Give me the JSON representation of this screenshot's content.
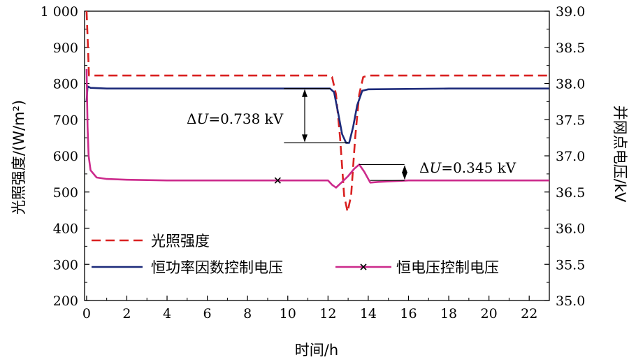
{
  "chart_data": {
    "type": "line",
    "xlabel": "时间/h",
    "ylabel_left": "光照强度/(W/m²)",
    "ylabel_right": "并网点电压/kV",
    "xlim": [
      -0.1,
      23
    ],
    "ylim_left": [
      200,
      1000
    ],
    "ylim_right": [
      35.0,
      39.0
    ],
    "x_ticks": [
      "0",
      "2",
      "4",
      "6",
      "8",
      "10",
      "12",
      "14",
      "16",
      "18",
      "20",
      "22"
    ],
    "y_left_ticks": [
      "200",
      "300",
      "400",
      "500",
      "600",
      "700",
      "800",
      "900",
      "1 000"
    ],
    "y_right_ticks": [
      "35.0",
      "35.5",
      "36.0",
      "36.5",
      "37.0",
      "37.5",
      "38.0",
      "38.5",
      "39.0"
    ],
    "grid": false,
    "legend_placement": "bottom-left",
    "series": [
      {
        "name": "光照强度",
        "axis": "left",
        "color": "#d92121",
        "style": "dashed",
        "points": [
          [
            0,
            1000
          ],
          [
            0.05,
            930
          ],
          [
            0.12,
            822
          ],
          [
            0.3,
            822
          ],
          [
            4,
            822
          ],
          [
            8,
            822
          ],
          [
            12,
            822
          ],
          [
            12.2,
            818
          ],
          [
            12.4,
            770
          ],
          [
            12.6,
            650
          ],
          [
            12.8,
            490
          ],
          [
            12.97,
            445
          ],
          [
            13.15,
            490
          ],
          [
            13.35,
            650
          ],
          [
            13.55,
            770
          ],
          [
            13.75,
            818
          ],
          [
            14.0,
            822
          ],
          [
            18,
            822
          ],
          [
            23,
            822
          ]
        ]
      },
      {
        "name": "恒功率因数控制电压",
        "axis": "right",
        "color": "#1c2a7a",
        "style": "solid",
        "points": [
          [
            0,
            37.75
          ],
          [
            0.05,
            37.96
          ],
          [
            0.2,
            37.94
          ],
          [
            1,
            37.93
          ],
          [
            4,
            37.93
          ],
          [
            8,
            37.93
          ],
          [
            12.1,
            37.93
          ],
          [
            12.3,
            37.88
          ],
          [
            12.5,
            37.6
          ],
          [
            12.7,
            37.3
          ],
          [
            12.9,
            37.18
          ],
          [
            13.05,
            37.18
          ],
          [
            13.25,
            37.4
          ],
          [
            13.45,
            37.7
          ],
          [
            13.7,
            37.9
          ],
          [
            14,
            37.92
          ],
          [
            18,
            37.93
          ],
          [
            23,
            37.93
          ]
        ]
      },
      {
        "name": "恒电压控制电压",
        "axis": "right",
        "color": "#cc2a8c",
        "style": "solid",
        "marker": "x",
        "marker_at": [
          9.5,
          36.66
        ],
        "points": [
          [
            0,
            38.2
          ],
          [
            0.05,
            37.4
          ],
          [
            0.1,
            37.0
          ],
          [
            0.2,
            36.8
          ],
          [
            0.5,
            36.7
          ],
          [
            1,
            36.68
          ],
          [
            2,
            36.67
          ],
          [
            4,
            36.66
          ],
          [
            8,
            36.66
          ],
          [
            12,
            36.66
          ],
          [
            12.2,
            36.6
          ],
          [
            12.4,
            36.56
          ],
          [
            12.7,
            36.64
          ],
          [
            13,
            36.72
          ],
          [
            13.3,
            36.82
          ],
          [
            13.55,
            36.88
          ],
          [
            13.8,
            36.78
          ],
          [
            14.1,
            36.63
          ],
          [
            14.5,
            36.64
          ],
          [
            16,
            36.66
          ],
          [
            23,
            36.66
          ]
        ]
      }
    ],
    "annotations": [
      {
        "text_prefix": "Δ",
        "variable": "U",
        "text_value": "=0.738 kV"
      },
      {
        "text_prefix": "Δ",
        "variable": "U",
        "text_value": "=0.345 kV"
      }
    ]
  }
}
